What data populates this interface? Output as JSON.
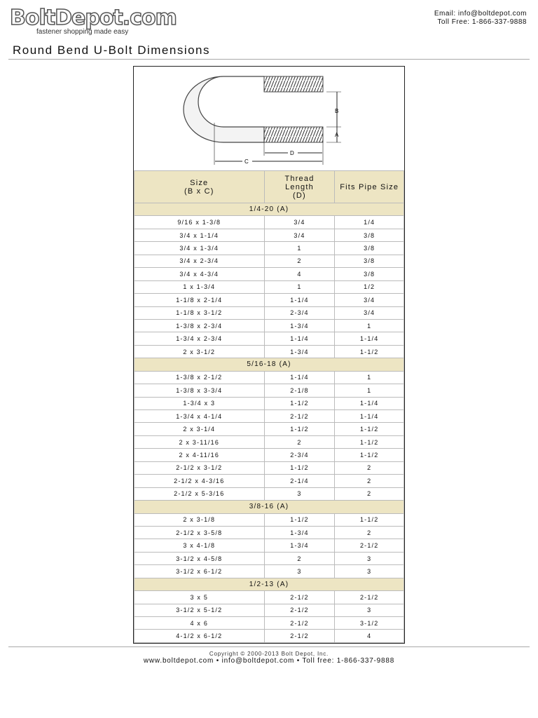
{
  "header": {
    "logo_text": "BoltDepot.com",
    "logo_tagline": "fastener shopping made easy",
    "email": "Email: info@boltdepot.com",
    "phone": "Toll Free: 1-866-337-9888"
  },
  "title": "Round Bend U-Bolt Dimensions",
  "diagram": {
    "labels": {
      "a": "A",
      "b": "B",
      "c": "C",
      "d": "D"
    }
  },
  "table": {
    "headers": [
      {
        "line1": "Size",
        "line2": "(B x C)",
        "line3": ""
      },
      {
        "line1": "Thread",
        "line2": "Length",
        "line3": "(D)"
      },
      {
        "line1": "Fits Pipe Size",
        "line2": "",
        "line3": ""
      }
    ],
    "groups": [
      {
        "label": "1/4-20 (A)",
        "rows": [
          [
            "9/16 x 1-3/8",
            "3/4",
            "1/4"
          ],
          [
            "3/4 x 1-1/4",
            "3/4",
            "3/8"
          ],
          [
            "3/4 x 1-3/4",
            "1",
            "3/8"
          ],
          [
            "3/4 x 2-3/4",
            "2",
            "3/8"
          ],
          [
            "3/4 x 4-3/4",
            "4",
            "3/8"
          ],
          [
            "1 x 1-3/4",
            "1",
            "1/2"
          ],
          [
            "1-1/8 x 2-1/4",
            "1-1/4",
            "3/4"
          ],
          [
            "1-1/8 x 3-1/2",
            "2-3/4",
            "3/4"
          ],
          [
            "1-3/8 x 2-3/4",
            "1-3/4",
            "1"
          ],
          [
            "1-3/4 x 2-3/4",
            "1-1/4",
            "1-1/4"
          ],
          [
            "2 x 3-1/2",
            "1-3/4",
            "1-1/2"
          ]
        ]
      },
      {
        "label": "5/16-18 (A)",
        "rows": [
          [
            "1-3/8 x 2-1/2",
            "1-1/4",
            "1"
          ],
          [
            "1-3/8 x 3-3/4",
            "2-1/8",
            "1"
          ],
          [
            "1-3/4 x 3",
            "1-1/2",
            "1-1/4"
          ],
          [
            "1-3/4 x 4-1/4",
            "2-1/2",
            "1-1/4"
          ],
          [
            "2 x 3-1/4",
            "1-1/2",
            "1-1/2"
          ],
          [
            "2 x 3-11/16",
            "2",
            "1-1/2"
          ],
          [
            "2 x 4-11/16",
            "2-3/4",
            "1-1/2"
          ],
          [
            "2-1/2 x 3-1/2",
            "1-1/2",
            "2"
          ],
          [
            "2-1/2 x 4-3/16",
            "2-1/4",
            "2"
          ],
          [
            "2-1/2 x 5-3/16",
            "3",
            "2"
          ]
        ]
      },
      {
        "label": "3/8-16 (A)",
        "rows": [
          [
            "2 x 3-1/8",
            "1-1/2",
            "1-1/2"
          ],
          [
            "2-1/2 x 3-5/8",
            "1-3/4",
            "2"
          ],
          [
            "3 x 4-1/8",
            "1-3/4",
            "2-1/2"
          ],
          [
            "3-1/2 x 4-5/8",
            "2",
            "3"
          ],
          [
            "3-1/2 x 6-1/2",
            "3",
            "3"
          ]
        ]
      },
      {
        "label": "1/2-13 (A)",
        "rows": [
          [
            "3 x 5",
            "2-1/2",
            "2-1/2"
          ],
          [
            "3-1/2 x 5-1/2",
            "2-1/2",
            "3"
          ],
          [
            "4 x 6",
            "2-1/2",
            "3-1/2"
          ],
          [
            "4-1/2 x 6-1/2",
            "2-1/2",
            "4"
          ]
        ]
      }
    ]
  },
  "footer": {
    "copyright": "Copyright © 2000-2013 Bolt Depot, Inc.",
    "links": "www.boltdepot.com • info@boltdepot.com • Toll free: 1-866-337-9888"
  }
}
